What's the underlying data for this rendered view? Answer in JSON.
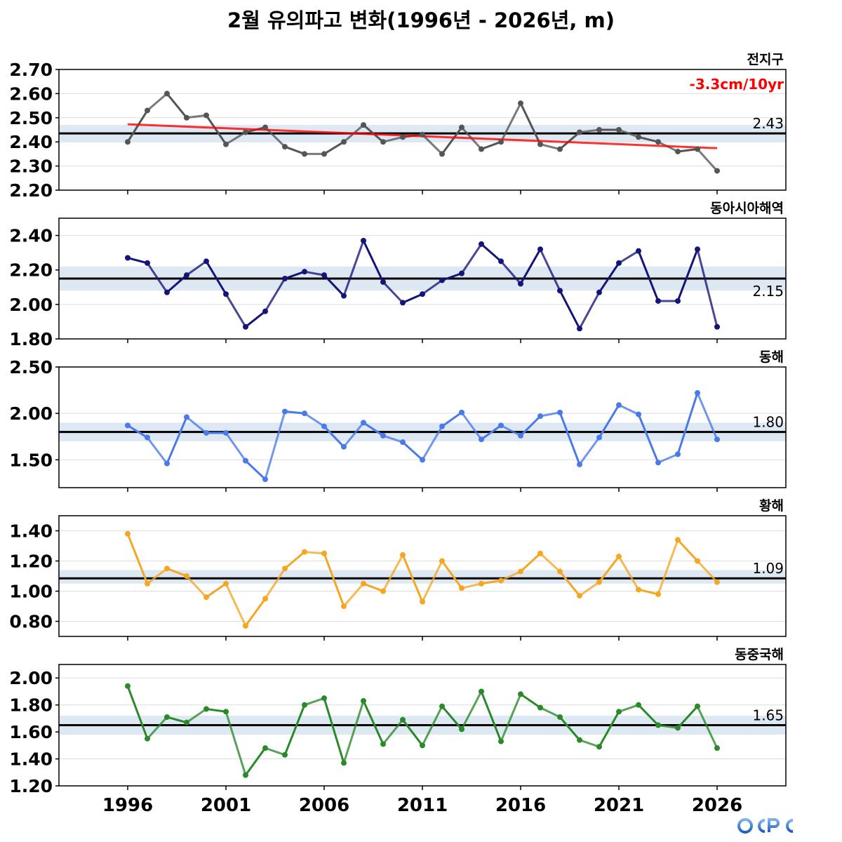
{
  "title": "2월 유의파고 변화(1996년 - 2026년, m)",
  "logo_text": "OCPC",
  "colors": {
    "trend": "#ff0000",
    "band": "#dde8f3",
    "mean_line": "#000000",
    "grid": "#dddddd"
  },
  "chart_data": [
    {
      "type": "line",
      "title": "전지구",
      "color": "#555555",
      "x": [
        1996,
        1997,
        1998,
        1999,
        2000,
        2001,
        2002,
        2003,
        2004,
        2005,
        2006,
        2007,
        2008,
        2009,
        2010,
        2011,
        2012,
        2013,
        2014,
        2015,
        2016,
        2017,
        2018,
        2019,
        2020,
        2021,
        2022,
        2023,
        2024,
        2025,
        2026
      ],
      "values": [
        2.4,
        2.53,
        2.6,
        2.5,
        2.51,
        2.39,
        2.44,
        2.46,
        2.38,
        2.35,
        2.35,
        2.4,
        2.47,
        2.4,
        2.42,
        2.43,
        2.35,
        2.46,
        2.37,
        2.4,
        2.56,
        2.39,
        2.37,
        2.44,
        2.45,
        2.45,
        2.42,
        2.4,
        2.36,
        2.37,
        2.28
      ],
      "mean": 2.435,
      "mean_label": "2.43",
      "band": [
        2.4,
        2.47
      ],
      "ylim": [
        2.2,
        2.7
      ],
      "yticks": [
        "2.20",
        "2.30",
        "2.40",
        "2.50",
        "2.60",
        "2.70"
      ],
      "trend": {
        "x": [
          1996,
          2026
        ],
        "y": [
          2.473,
          2.374
        ],
        "label": "-3.3cm/10yr"
      }
    },
    {
      "type": "line",
      "title": "동아시아해역",
      "color": "#151577",
      "x": [
        1996,
        1997,
        1998,
        1999,
        2000,
        2001,
        2002,
        2003,
        2004,
        2005,
        2006,
        2007,
        2008,
        2009,
        2010,
        2011,
        2012,
        2013,
        2014,
        2015,
        2016,
        2017,
        2018,
        2019,
        2020,
        2021,
        2022,
        2023,
        2024,
        2025,
        2026
      ],
      "values": [
        2.27,
        2.24,
        2.07,
        2.17,
        2.25,
        2.06,
        1.87,
        1.96,
        2.15,
        2.19,
        2.17,
        2.05,
        2.37,
        2.13,
        2.01,
        2.06,
        2.14,
        2.18,
        2.35,
        2.25,
        2.12,
        2.32,
        2.08,
        1.86,
        2.07,
        2.24,
        2.31,
        2.02,
        2.02,
        2.32,
        1.87
      ],
      "mean": 2.15,
      "mean_label": "2.15",
      "band": [
        2.08,
        2.22
      ],
      "ylim": [
        1.8,
        2.5
      ],
      "yticks": [
        "1.80",
        "2.00",
        "2.20",
        "2.40"
      ]
    },
    {
      "type": "line",
      "title": "동해",
      "color": "#4a7ae8",
      "x": [
        1996,
        1997,
        1998,
        1999,
        2000,
        2001,
        2002,
        2003,
        2004,
        2005,
        2006,
        2007,
        2008,
        2009,
        2010,
        2011,
        2012,
        2013,
        2014,
        2015,
        2016,
        2017,
        2018,
        2019,
        2020,
        2021,
        2022,
        2023,
        2024,
        2025,
        2026
      ],
      "values": [
        1.87,
        1.74,
        1.46,
        1.96,
        1.79,
        1.79,
        1.49,
        1.29,
        2.02,
        2.0,
        1.86,
        1.64,
        1.9,
        1.76,
        1.69,
        1.5,
        1.86,
        2.01,
        1.72,
        1.87,
        1.76,
        1.97,
        2.01,
        1.45,
        1.74,
        2.09,
        1.99,
        1.47,
        1.56,
        2.22,
        1.72
      ],
      "mean": 1.8,
      "mean_label": "1.80",
      "band": [
        1.7,
        1.9
      ],
      "ylim": [
        1.2,
        2.5
      ],
      "yticks": [
        "1.50",
        "2.00",
        "2.50"
      ]
    },
    {
      "type": "line",
      "title": "황해",
      "color": "#f5a623",
      "x": [
        1996,
        1997,
        1998,
        1999,
        2000,
        2001,
        2002,
        2003,
        2004,
        2005,
        2006,
        2007,
        2008,
        2009,
        2010,
        2011,
        2012,
        2013,
        2014,
        2015,
        2016,
        2017,
        2018,
        2019,
        2020,
        2021,
        2022,
        2023,
        2024,
        2025,
        2026
      ],
      "values": [
        1.38,
        1.05,
        1.15,
        1.1,
        0.96,
        1.05,
        0.77,
        0.95,
        1.15,
        1.26,
        1.25,
        0.9,
        1.05,
        1.0,
        1.24,
        0.93,
        1.2,
        1.02,
        1.05,
        1.07,
        1.13,
        1.25,
        1.13,
        0.97,
        1.06,
        1.23,
        1.01,
        0.98,
        1.34,
        1.2,
        1.06
      ],
      "mean": 1.085,
      "mean_label": "1.09",
      "band": [
        1.05,
        1.14
      ],
      "ylim": [
        0.7,
        1.5
      ],
      "yticks": [
        "0.80",
        "1.00",
        "1.20",
        "1.40"
      ]
    },
    {
      "type": "line",
      "title": "동중국해",
      "color": "#2a8a2a",
      "x": [
        1996,
        1997,
        1998,
        1999,
        2000,
        2001,
        2002,
        2003,
        2004,
        2005,
        2006,
        2007,
        2008,
        2009,
        2010,
        2011,
        2012,
        2013,
        2014,
        2015,
        2016,
        2017,
        2018,
        2019,
        2020,
        2021,
        2022,
        2023,
        2024,
        2025,
        2026
      ],
      "values": [
        1.94,
        1.55,
        1.71,
        1.67,
        1.77,
        1.75,
        1.28,
        1.48,
        1.43,
        1.8,
        1.85,
        1.37,
        1.83,
        1.51,
        1.69,
        1.5,
        1.79,
        1.62,
        1.9,
        1.53,
        1.88,
        1.78,
        1.71,
        1.54,
        1.49,
        1.75,
        1.8,
        1.65,
        1.63,
        1.79,
        1.48
      ],
      "mean": 1.65,
      "mean_label": "1.65",
      "band": [
        1.58,
        1.72
      ],
      "ylim": [
        1.2,
        2.1
      ],
      "yticks": [
        "1.20",
        "1.40",
        "1.60",
        "1.80",
        "2.00"
      ]
    }
  ],
  "x_axis": {
    "ticks": [
      "1996",
      "2001",
      "2006",
      "2011",
      "2016",
      "2021",
      "2026"
    ],
    "xlim": [
      1992.5,
      2029.5
    ]
  }
}
